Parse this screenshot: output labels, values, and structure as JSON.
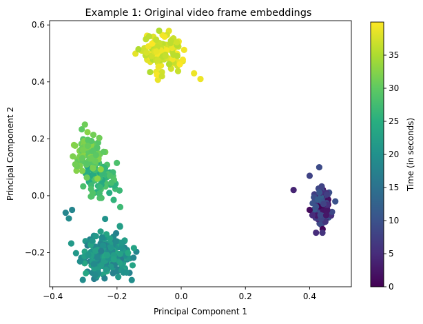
{
  "chart_data": {
    "type": "scatter",
    "title": "Example 1: Original video frame embeddings",
    "xlabel": "Principal Component 1",
    "ylabel": "Principal Component 2",
    "xlim": [
      -0.41,
      0.53
    ],
    "ylim": [
      -0.32,
      0.615
    ],
    "xticks": [
      -0.4,
      -0.2,
      0.0,
      0.2,
      0.4
    ],
    "xtick_labels": [
      "−0.4",
      "−0.2",
      "0.0",
      "0.2",
      "0.4"
    ],
    "yticks": [
      -0.2,
      0.0,
      0.2,
      0.4,
      0.6
    ],
    "ytick_labels": [
      "−0.2",
      "0.0",
      "0.2",
      "0.4",
      "0.6"
    ],
    "grid": false,
    "colorbar": {
      "label": "Time (in seconds)",
      "colormap": "viridis",
      "range": [
        0,
        40
      ],
      "ticks": [
        0,
        5,
        10,
        15,
        20,
        25,
        30,
        35
      ],
      "tick_labels": [
        "0",
        "5",
        "10",
        "15",
        "20",
        "25",
        "30",
        "35"
      ]
    },
    "clusters": [
      {
        "time_range": [
          0,
          12
        ],
        "center": [
          0.438,
          -0.04
        ],
        "spread": [
          0.018,
          0.045
        ],
        "n": 130
      },
      {
        "time_range": [
          17,
          24
        ],
        "center": [
          -0.23,
          -0.21
        ],
        "spread": [
          0.045,
          0.045
        ],
        "n": 260
      },
      {
        "time_range": [
          24,
          29
        ],
        "center": [
          -0.255,
          0.06
        ],
        "spread": [
          0.03,
          0.05
        ],
        "n": 90
      },
      {
        "time_range": [
          29,
          33
        ],
        "center": [
          -0.29,
          0.16
        ],
        "spread": [
          0.028,
          0.045
        ],
        "n": 100
      },
      {
        "time_range": [
          35,
          40
        ],
        "center": [
          -0.06,
          0.5
        ],
        "spread": [
          0.045,
          0.045
        ],
        "n": 110
      }
    ],
    "points_sample": [
      {
        "x": -0.36,
        "y": -0.06,
        "t": 18
      },
      {
        "x": -0.34,
        "y": -0.05,
        "t": 18
      },
      {
        "x": -0.35,
        "y": -0.08,
        "t": 19
      },
      {
        "x": -0.18,
        "y": -0.27,
        "t": 20
      },
      {
        "x": -0.17,
        "y": -0.27,
        "t": 20
      },
      {
        "x": -0.3,
        "y": 0.25,
        "t": 31
      },
      {
        "x": -0.19,
        "y": -0.04,
        "t": 27
      },
      {
        "x": -0.11,
        "y": 0.55,
        "t": 36
      },
      {
        "x": -0.1,
        "y": 0.56,
        "t": 36
      },
      {
        "x": 0.06,
        "y": 0.41,
        "t": 39
      },
      {
        "x": 0.04,
        "y": 0.43,
        "t": 39
      },
      {
        "x": -0.06,
        "y": 0.42,
        "t": 37
      },
      {
        "x": 0.35,
        "y": 0.02,
        "t": 4
      },
      {
        "x": 0.43,
        "y": 0.1,
        "t": 9
      },
      {
        "x": 0.4,
        "y": 0.07,
        "t": 8
      },
      {
        "x": 0.4,
        "y": -0.05,
        "t": 1
      },
      {
        "x": 0.48,
        "y": -0.02,
        "t": 10
      },
      {
        "x": 0.44,
        "y": -0.13,
        "t": 6
      },
      {
        "x": 0.42,
        "y": -0.13,
        "t": 5
      }
    ]
  }
}
